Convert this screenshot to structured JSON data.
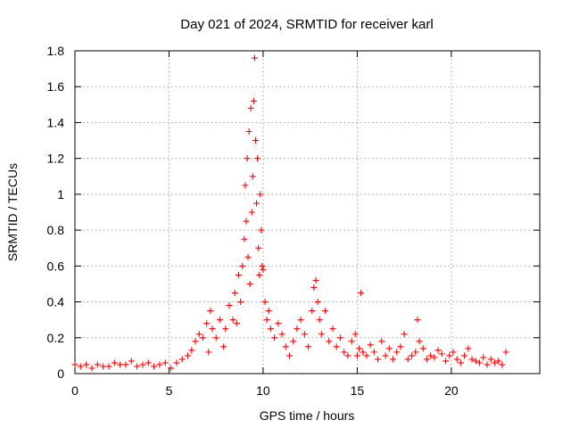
{
  "chart_data": {
    "type": "scatter",
    "title": "Day 021 of 2024, SRMTID for receiver karl",
    "xlabel": "GPS time / hours",
    "ylabel": "SRMTID / TECUs",
    "xlim": [
      0,
      24.7
    ],
    "ylim": [
      0,
      1.8
    ],
    "xticks": [
      0,
      5,
      10,
      15,
      20
    ],
    "yticks": [
      0,
      0.2,
      0.4,
      0.6,
      0.8,
      1,
      1.2,
      1.4,
      1.6,
      1.8
    ],
    "xtick_labels": [
      "0",
      "5",
      "10",
      "15",
      "20"
    ],
    "ytick_labels": [
      "0",
      "0.2",
      "0.4",
      "0.6",
      "0.8",
      "1",
      "1.2",
      "1.4",
      "1.6",
      "1.8"
    ],
    "grid": true,
    "marker": "+",
    "color": "#ff0000",
    "series": [
      {
        "name": "SRMTID",
        "x": [
          0.0,
          0.3,
          0.6,
          0.9,
          1.2,
          1.5,
          1.8,
          2.1,
          2.4,
          2.7,
          3.0,
          3.3,
          3.6,
          3.9,
          4.2,
          4.5,
          4.8,
          5.1,
          5.4,
          5.7,
          6.0,
          6.2,
          6.4,
          6.6,
          6.8,
          7.0,
          7.1,
          7.2,
          7.3,
          7.5,
          7.7,
          7.9,
          8.0,
          8.2,
          8.4,
          8.5,
          8.6,
          8.7,
          8.8,
          8.9,
          9.0,
          9.05,
          9.1,
          9.15,
          9.2,
          9.25,
          9.3,
          9.35,
          9.4,
          9.45,
          9.5,
          9.55,
          9.6,
          9.65,
          9.7,
          9.75,
          9.8,
          9.85,
          9.9,
          9.95,
          10.0,
          10.1,
          10.2,
          10.3,
          10.4,
          10.6,
          10.8,
          11.0,
          11.2,
          11.4,
          11.6,
          11.8,
          12.0,
          12.2,
          12.4,
          12.6,
          12.7,
          12.8,
          12.9,
          13.0,
          13.1,
          13.3,
          13.5,
          13.7,
          13.9,
          14.1,
          14.3,
          14.5,
          14.7,
          14.9,
          15.0,
          15.1,
          15.2,
          15.3,
          15.5,
          15.7,
          15.9,
          16.1,
          16.3,
          16.5,
          16.7,
          16.9,
          17.1,
          17.3,
          17.5,
          17.7,
          17.9,
          18.1,
          18.2,
          18.3,
          18.5,
          18.7,
          18.9,
          19.1,
          19.3,
          19.5,
          19.7,
          19.9,
          20.1,
          20.3,
          20.5,
          20.7,
          20.9,
          21.1,
          21.3,
          21.5,
          21.7,
          21.9,
          22.1,
          22.3,
          22.5,
          22.7,
          22.9
        ],
        "y": [
          0.05,
          0.04,
          0.05,
          0.03,
          0.05,
          0.04,
          0.04,
          0.06,
          0.05,
          0.05,
          0.07,
          0.04,
          0.05,
          0.06,
          0.04,
          0.05,
          0.06,
          0.03,
          0.06,
          0.08,
          0.1,
          0.13,
          0.18,
          0.22,
          0.2,
          0.28,
          0.12,
          0.35,
          0.25,
          0.2,
          0.3,
          0.15,
          0.25,
          0.38,
          0.3,
          0.45,
          0.28,
          0.55,
          0.4,
          0.6,
          0.75,
          1.05,
          0.85,
          1.2,
          0.65,
          1.35,
          0.5,
          1.48,
          0.9,
          1.1,
          1.52,
          1.76,
          1.3,
          0.95,
          1.2,
          0.7,
          0.55,
          1.0,
          0.8,
          0.6,
          0.58,
          0.4,
          0.3,
          0.35,
          0.25,
          0.2,
          0.28,
          0.22,
          0.15,
          0.1,
          0.18,
          0.25,
          0.3,
          0.22,
          0.15,
          0.35,
          0.48,
          0.52,
          0.4,
          0.3,
          0.22,
          0.35,
          0.18,
          0.25,
          0.15,
          0.2,
          0.12,
          0.1,
          0.18,
          0.22,
          0.1,
          0.14,
          0.45,
          0.12,
          0.1,
          0.16,
          0.12,
          0.08,
          0.18,
          0.1,
          0.14,
          0.08,
          0.12,
          0.15,
          0.22,
          0.08,
          0.1,
          0.12,
          0.3,
          0.18,
          0.14,
          0.08,
          0.1,
          0.09,
          0.13,
          0.11,
          0.07,
          0.1,
          0.12,
          0.08,
          0.06,
          0.1,
          0.14,
          0.08,
          0.07,
          0.06,
          0.09,
          0.05,
          0.08,
          0.06,
          0.07,
          0.05,
          0.12
        ]
      }
    ]
  }
}
